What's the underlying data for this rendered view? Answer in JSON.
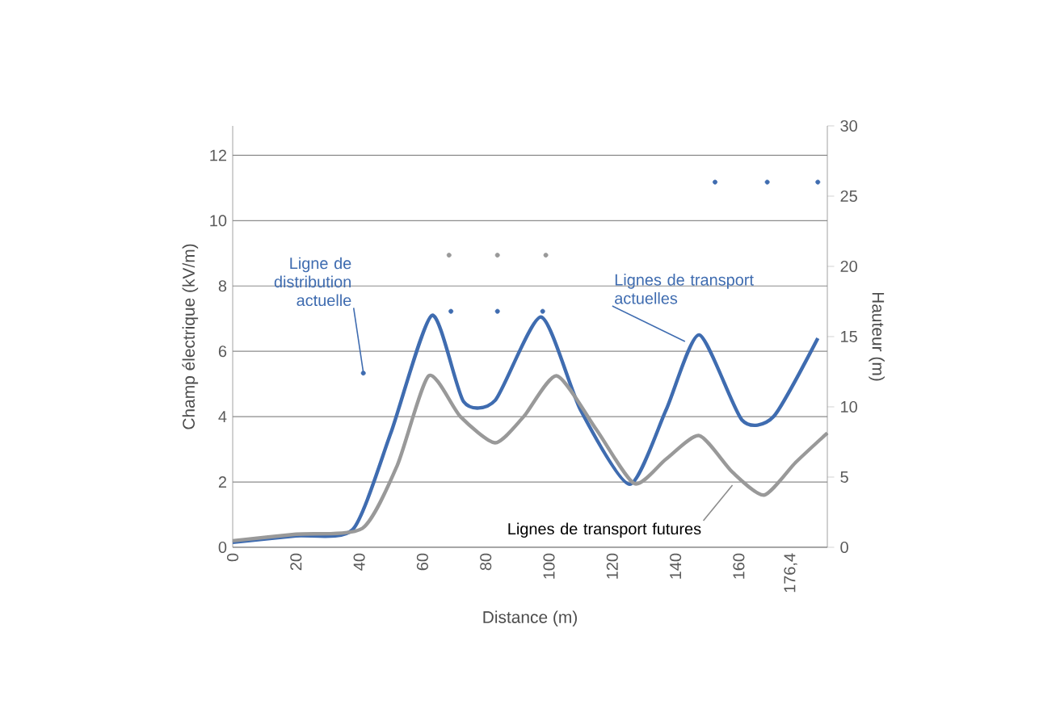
{
  "chart_data": {
    "type": "line",
    "xlabel": "Distance (m)",
    "ylabel": "Champ électrique (kV/m)",
    "y2label": "Hauteur (m)",
    "xlim": [
      0,
      188
    ],
    "xticks": [
      0,
      20,
      40,
      60,
      80,
      100,
      120,
      140,
      160,
      {
        "value": 176.4,
        "label": "176,4"
      }
    ],
    "ylim": [
      0,
      12.9
    ],
    "yticks": [
      0,
      2,
      4,
      6,
      8,
      10,
      12
    ],
    "y2lim": [
      0,
      30
    ],
    "y2ticks": [
      0,
      5,
      10,
      15,
      20,
      25,
      30
    ],
    "grid": "y",
    "series": [
      {
        "color": "#3f6cb0",
        "x": [
          0,
          20,
          38,
          50,
          63,
          73,
          83,
          97.5,
          110,
          125.5,
          137,
          147.5,
          161,
          171,
          185
        ],
        "values": [
          0.15,
          0.35,
          0.55,
          3.5,
          7.1,
          4.46,
          4.5,
          7.05,
          4.2,
          1.93,
          4.2,
          6.5,
          3.9,
          4.0,
          6.4
        ]
      },
      {
        "color": "#999999",
        "x": [
          0,
          20,
          41,
          52,
          62,
          72,
          83,
          92,
          102.5,
          115,
          127,
          137,
          147.5,
          158,
          168,
          178,
          188
        ],
        "values": [
          0.2,
          0.4,
          0.58,
          2.5,
          5.25,
          4.0,
          3.2,
          4.0,
          5.25,
          3.6,
          1.95,
          2.7,
          3.42,
          2.3,
          1.6,
          2.6,
          3.5
        ]
      },
      {
        "type": "scatter",
        "axis": "y2",
        "marker": "circle",
        "color": "#999999",
        "x": [
          68.4,
          83.7,
          99
        ],
        "values": [
          20.8,
          20.8,
          20.8
        ]
      },
      {
        "type": "scatter",
        "axis": "y2",
        "marker": "circle",
        "color": "#3f6cb0",
        "x": [
          69,
          83.7,
          98
        ],
        "values": [
          16.8,
          16.8,
          16.8
        ]
      },
      {
        "type": "scatter",
        "axis": "y2",
        "marker": "circle",
        "color": "#3f6cb0",
        "x": [
          152.5,
          169,
          185
        ],
        "values": [
          26,
          26,
          26
        ]
      },
      {
        "type": "scatter",
        "axis": "y2",
        "marker": "circle",
        "color": "#3f6cb0",
        "x": [
          41.3
        ],
        "values": [
          12.4
        ]
      }
    ],
    "annotations": [
      {
        "text": "Ligne de distribution actuelle",
        "x": 41.3,
        "y": 5.35
      },
      {
        "text": "Lignes de transport actuelles",
        "x": 143,
        "y": 6.3
      },
      {
        "text": "Lignes de transport futures",
        "x": 158,
        "y": 1.9
      }
    ]
  }
}
